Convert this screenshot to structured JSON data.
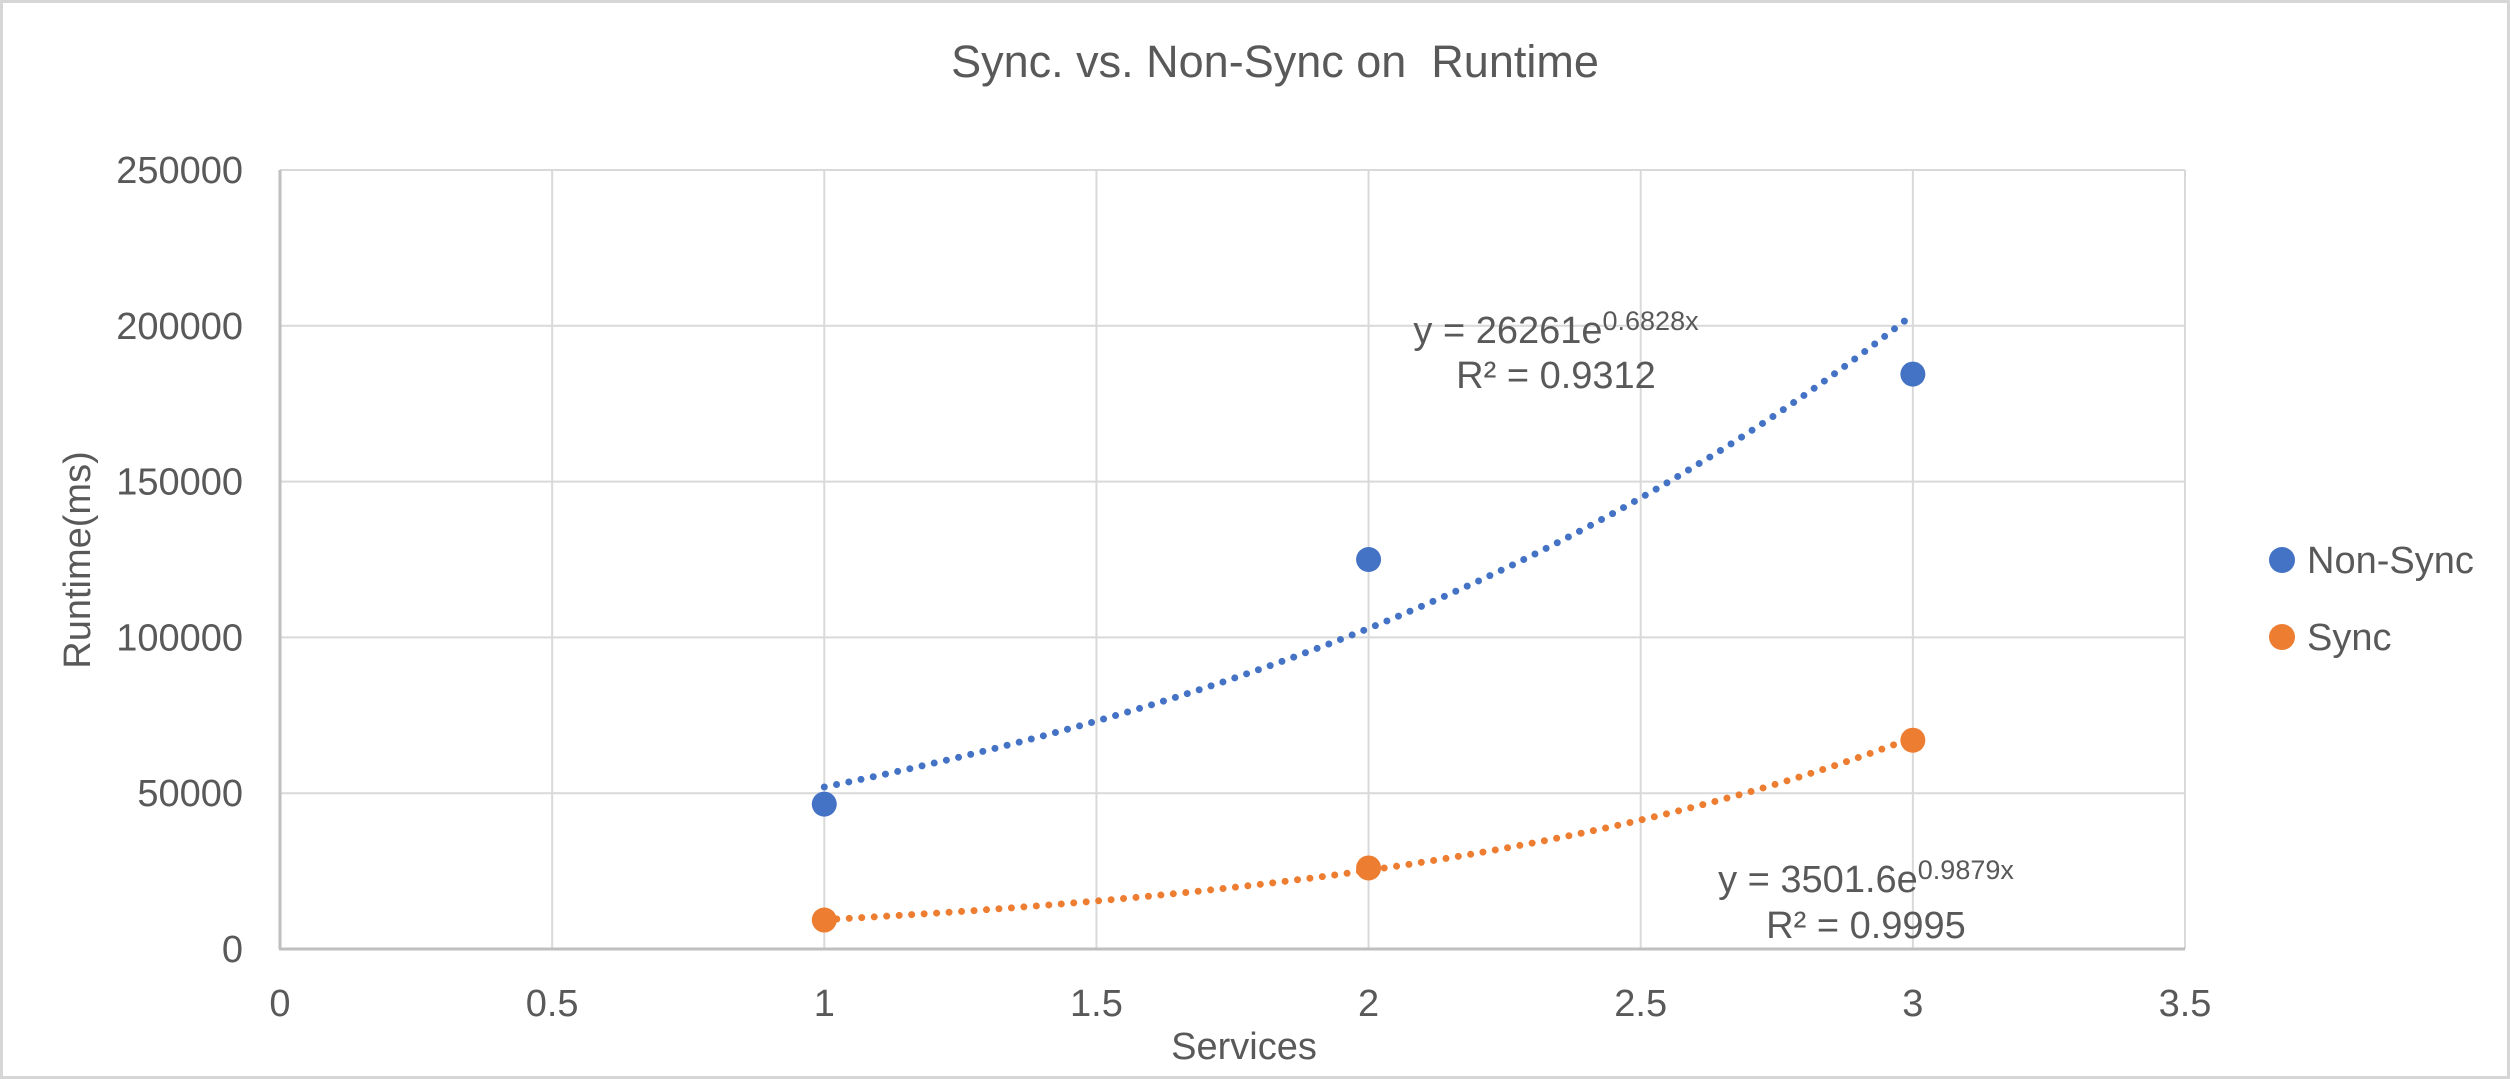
{
  "chart_data": {
    "type": "scatter",
    "title": "Sync. vs. Non-Sync on  Runtime",
    "xlabel": "Services",
    "ylabel": "Runtime(ms)",
    "xlim": [
      0,
      3.5
    ],
    "ylim": [
      0,
      250000
    ],
    "x_tick_values": [
      0,
      0.5,
      1,
      1.5,
      2,
      2.5,
      3,
      3.5
    ],
    "x_tick_labels": [
      "0",
      "0.5",
      "1",
      "1.5",
      "2",
      "2.5",
      "3",
      "3.5"
    ],
    "y_tick_values": [
      0,
      50000,
      100000,
      150000,
      200000,
      250000
    ],
    "y_tick_labels": [
      "0",
      "50000",
      "100000",
      "150000",
      "200000",
      "250000"
    ],
    "grid": true,
    "legend_position": "right-center",
    "series": [
      {
        "name": "Non-Sync",
        "color": "#4472C4",
        "points": [
          [
            1,
            46500
          ],
          [
            2,
            125000
          ],
          [
            3,
            184500
          ]
        ],
        "trendline": {
          "type": "exponential",
          "a": 26261,
          "b": 0.6828,
          "x_start": 1,
          "x_end": 3,
          "equation_base": "y = 26261e",
          "equation_exponent": "0.6828x",
          "r2_label": "R² = 0.9312"
        }
      },
      {
        "name": "Sync",
        "color": "#ED7D31",
        "points": [
          [
            1,
            9300
          ],
          [
            2,
            26000
          ],
          [
            3,
            67000
          ]
        ],
        "trendline": {
          "type": "exponential",
          "a": 3501.6,
          "b": 0.9879,
          "x_start": 1,
          "x_end": 3,
          "equation_base": "y = 3501.6e",
          "equation_exponent": "0.9879x",
          "r2_label": "R² = 0.9995"
        }
      }
    ]
  },
  "colors": {
    "background": "#FFFFFF",
    "border": "#D6D6D6",
    "text": "#595959",
    "gridline": "#D9D9D9",
    "axis_line": "#BFBFBF",
    "series_nonsync": "#4472C4",
    "series_sync": "#ED7D31"
  }
}
